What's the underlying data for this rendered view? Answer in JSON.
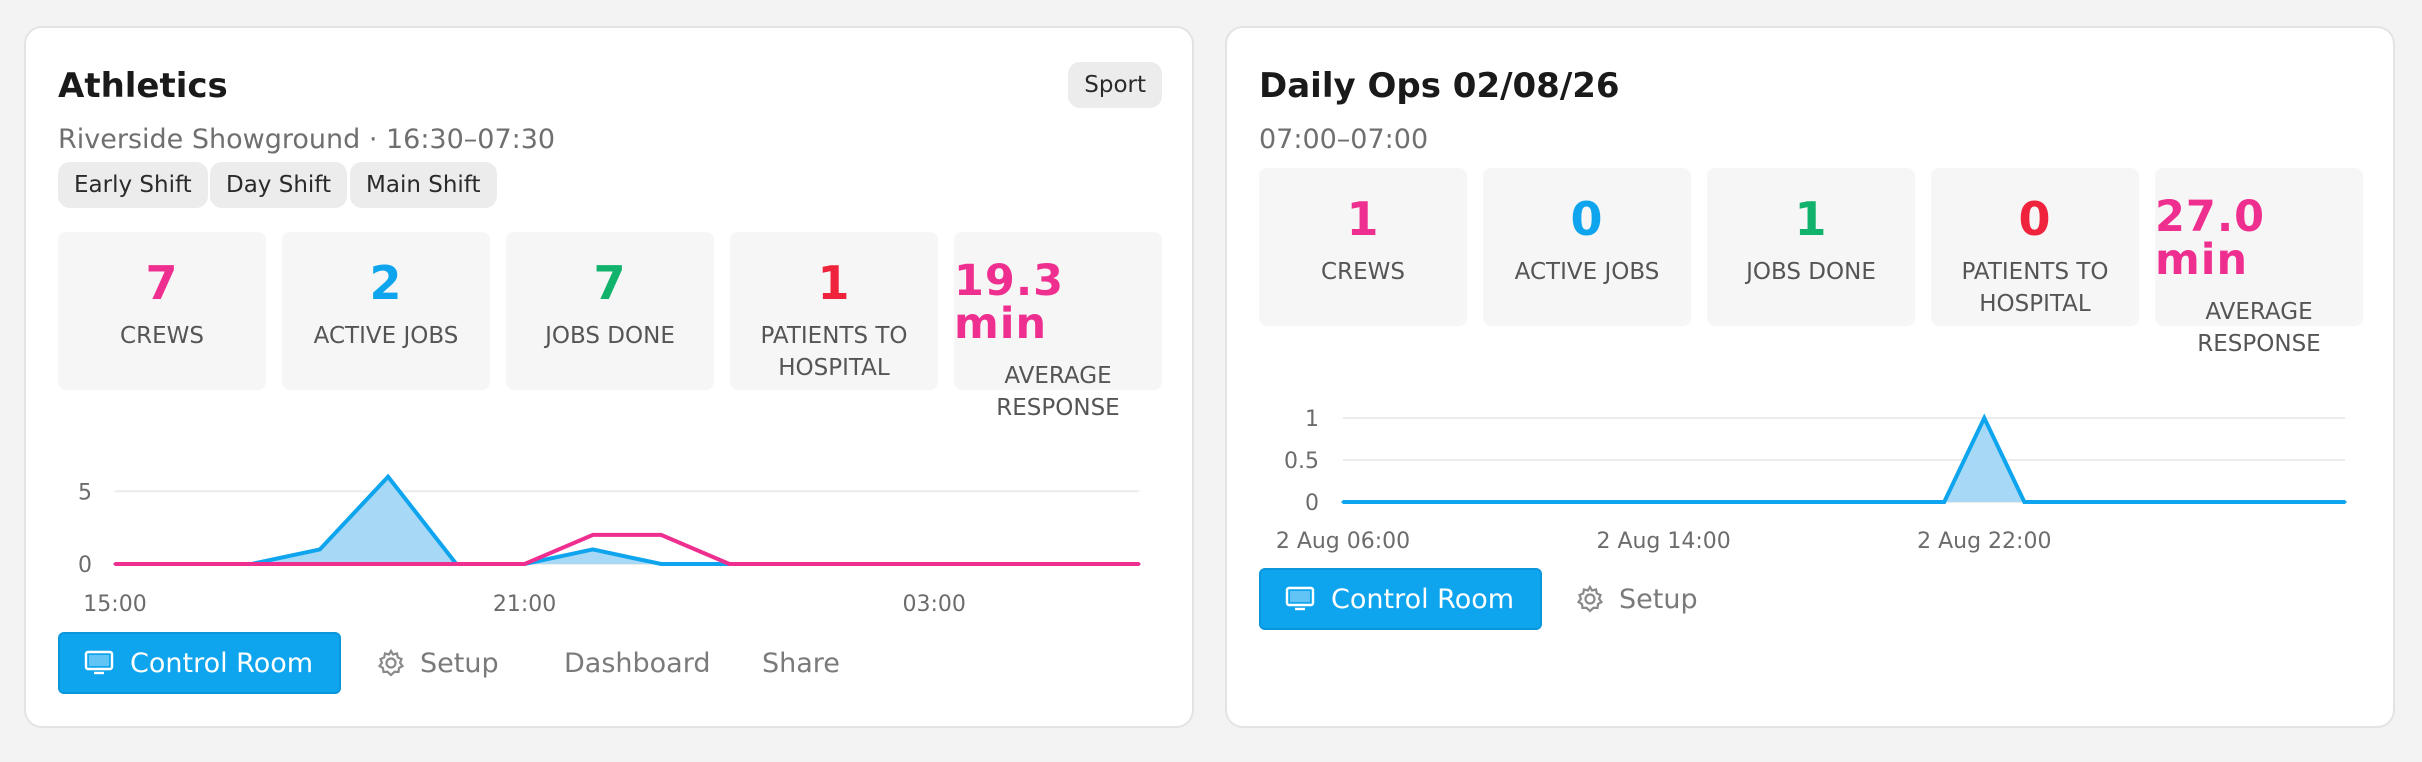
{
  "colors": {
    "pink": "#ef2f8f",
    "blue": "#0ea5ee",
    "green": "#10b26c",
    "red": "#ef233c",
    "area_fill": "#a7d9f6"
  },
  "cards": [
    {
      "title": "Athletics",
      "badge": "Sport",
      "subtitle": "Riverside Showground · 16:30–07:30",
      "shifts": [
        "Early Shift",
        "Day Shift",
        "Main Shift"
      ],
      "stats": [
        {
          "value": "7",
          "label": "CREWS",
          "color": "pink"
        },
        {
          "value": "2",
          "label": "ACTIVE JOBS",
          "color": "blue"
        },
        {
          "value": "7",
          "label": "JOBS DONE",
          "color": "green"
        },
        {
          "value": "1",
          "label": "PATIENTS TO HOSPITAL",
          "color": "red"
        },
        {
          "value": "19.3 min",
          "label": "AVERAGE RESPONSE",
          "color": "pink"
        }
      ],
      "buttons": {
        "control_room": "Control Room",
        "setup": "Setup",
        "dashboard": "Dashboard",
        "share": "Share"
      }
    },
    {
      "title": "Daily Ops 02/08/26",
      "subtitle": "07:00–07:00",
      "stats": [
        {
          "value": "1",
          "label": "CREWS",
          "color": "pink"
        },
        {
          "value": "0",
          "label": "ACTIVE JOBS",
          "color": "blue"
        },
        {
          "value": "1",
          "label": "JOBS DONE",
          "color": "green"
        },
        {
          "value": "0",
          "label": "PATIENTS TO HOSPITAL",
          "color": "red"
        },
        {
          "value": "27.0 min",
          "label": "AVERAGE RESPONSE",
          "color": "pink"
        }
      ],
      "buttons": {
        "control_room": "Control Room",
        "setup": "Setup"
      }
    }
  ],
  "chart_data": [
    {
      "type": "area",
      "x": [
        "15:00",
        "16:00",
        "17:00",
        "18:00",
        "19:00",
        "20:00",
        "21:00",
        "22:00",
        "23:00",
        "00:00",
        "01:00",
        "02:00",
        "03:00",
        "04:00",
        "05:00",
        "06:00"
      ],
      "x_tick_labels": [
        "15:00",
        "21:00",
        "03:00"
      ],
      "y_ticks": [
        0,
        5
      ],
      "ylim": [
        0,
        5.5
      ],
      "grid": true,
      "series": [
        {
          "color": "blue",
          "fill": true,
          "values": [
            0,
            0,
            0,
            1,
            6,
            0,
            0,
            1,
            0,
            0,
            0,
            0,
            0,
            0,
            0,
            0
          ]
        },
        {
          "color": "pink",
          "fill": false,
          "values": [
            0,
            0,
            0,
            0,
            0,
            0,
            0,
            2,
            2,
            0,
            0,
            0,
            0,
            0,
            0,
            0
          ]
        }
      ]
    },
    {
      "type": "area",
      "x": [
        "2 Aug 06:00",
        "2 Aug 07:00",
        "2 Aug 08:00",
        "2 Aug 09:00",
        "2 Aug 10:00",
        "2 Aug 11:00",
        "2 Aug 12:00",
        "2 Aug 13:00",
        "2 Aug 14:00",
        "2 Aug 15:00",
        "2 Aug 16:00",
        "2 Aug 17:00",
        "2 Aug 18:00",
        "2 Aug 19:00",
        "2 Aug 20:00",
        "2 Aug 21:00",
        "2 Aug 22:00",
        "2 Aug 23:00",
        "3 Aug 00:00",
        "3 Aug 01:00",
        "3 Aug 02:00",
        "3 Aug 03:00",
        "3 Aug 04:00",
        "3 Aug 05:00",
        "3 Aug 06:00",
        "3 Aug 07:00"
      ],
      "x_tick_labels": [
        "2 Aug 06:00",
        "2 Aug 14:00",
        "2 Aug 22:00"
      ],
      "y_ticks": [
        0,
        0.5,
        1
      ],
      "ylim": [
        0,
        1
      ],
      "grid": true,
      "series": [
        {
          "color": "blue",
          "fill": true,
          "values": [
            0,
            0,
            0,
            0,
            0,
            0,
            0,
            0,
            0,
            0,
            0,
            0,
            0,
            0,
            0,
            0,
            1,
            0,
            0,
            0,
            0,
            0,
            0,
            0,
            0,
            0
          ]
        }
      ]
    }
  ]
}
